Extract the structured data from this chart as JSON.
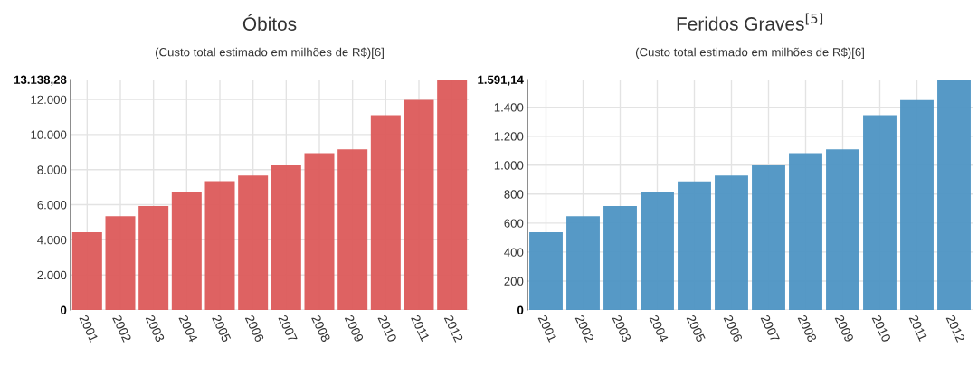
{
  "chart_data": [
    {
      "type": "bar",
      "title": "Óbitos",
      "subtitle": "(Custo total estimado em milhões de R$)[6]",
      "categories": [
        "2001",
        "2002",
        "2003",
        "2004",
        "2005",
        "2006",
        "2007",
        "2008",
        "2009",
        "2010",
        "2011",
        "2012"
      ],
      "series": [
        {
          "color": "#dc5a5a",
          "values": [
            4437,
            5345,
            5921,
            6742,
            7336,
            7668,
            8245,
            8943,
            9153,
            11109,
            11983,
            13138.28
          ]
        }
      ],
      "ylim": [
        0,
        13138.28
      ],
      "yticks": [
        0,
        {
          "value": 2000,
          "label": "2.000"
        },
        {
          "value": 4000,
          "label": "4.000"
        },
        {
          "value": 6000,
          "label": "6.000"
        },
        {
          "value": 8000,
          "label": "8.000"
        },
        {
          "value": 10000,
          "label": "10.000"
        },
        {
          "value": 12000,
          "label": "12.000"
        },
        {
          "value": 13138.28,
          "label": "13.138,28"
        }
      ],
      "grid": true
    },
    {
      "type": "bar",
      "title": "Feridos Graves$^{[5]}$",
      "subtitle": "(Custo total estimado em milhões de R$)[6]",
      "categories": [
        "2001",
        "2002",
        "2003",
        "2004",
        "2005",
        "2006",
        "2007",
        "2008",
        "2009",
        "2010",
        "2011",
        "2012"
      ],
      "series": [
        {
          "color": "#4d93c3",
          "values": [
            536,
            648,
            717,
            818,
            887,
            928,
            999,
            1083,
            1109,
            1344,
            1449,
            1591.14
          ]
        }
      ],
      "ylim": [
        0,
        1591.14
      ],
      "yticks": [
        0,
        200,
        400,
        600,
        800,
        {
          "value": 1000,
          "label": "1.000"
        },
        {
          "value": 1200,
          "label": "1.200"
        },
        {
          "value": 1400,
          "label": "1.400"
        },
        {
          "value": 1591.14,
          "label": "1.591,14"
        }
      ],
      "grid": true
    }
  ]
}
